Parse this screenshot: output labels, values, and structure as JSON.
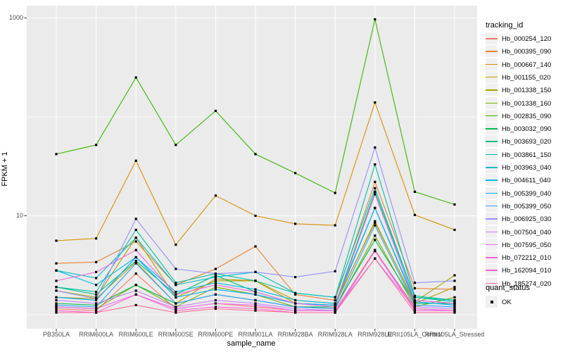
{
  "legend": {
    "tracking_title": "tracking_id",
    "quant_title": "quant_status",
    "quant_ok": "OK"
  },
  "chart_data": {
    "type": "line",
    "title": "",
    "xlabel": "sample_name",
    "ylabel": "FPKM + 1",
    "y_scale": "log10",
    "y_major_ticks": [
      10,
      1000
    ],
    "y_minor_gridlines": [
      1,
      100
    ],
    "ylim": [
      1,
      1100
    ],
    "grid": true,
    "legend_position": "right",
    "panel_background": "#ebebeb",
    "gridline_color": "#ffffff",
    "point_color": "#000000",
    "quant_status_label": "OK",
    "categories": [
      "PB350LA",
      "RRIM600LA",
      "RRIM600LE",
      "RRIM600SE",
      "RRIM600PE",
      "RRIM901LA",
      "RRIM928BA",
      "RRIM928LA",
      "RRIM928LE",
      "RRII105LA_Control",
      "RRII105LA_Stressed"
    ],
    "series": [
      {
        "name": "Hb_000254_120",
        "color": "#F8766D",
        "values": [
          1.15,
          1.1,
          2.6,
          1.15,
          1.3,
          1.2,
          1.1,
          1.1,
          4.5,
          1.15,
          1.1
        ]
      },
      {
        "name": "Hb_000395_090",
        "color": "#EA8331",
        "values": [
          3.3,
          3.4,
          5.5,
          2.0,
          2.9,
          4.9,
          1.6,
          1.4,
          22,
          1.85,
          1.8
        ]
      },
      {
        "name": "Hb_000667_140",
        "color": "#D89000",
        "values": [
          5.6,
          5.9,
          36,
          5.1,
          16,
          10,
          8.3,
          8.0,
          140,
          10.2,
          7.2
        ]
      },
      {
        "name": "Hb_001155_020",
        "color": "#C09B00",
        "values": [
          1.5,
          1.45,
          3.4,
          1.3,
          2.3,
          2.2,
          1.3,
          1.25,
          8.8,
          1.3,
          1.9
        ]
      },
      {
        "name": "Hb_001338_150",
        "color": "#A3A500",
        "values": [
          1.75,
          1.5,
          6.0,
          1.5,
          2.2,
          2.2,
          1.4,
          1.3,
          8.5,
          1.35,
          2.5
        ]
      },
      {
        "name": "Hb_001338_160",
        "color": "#7CAE00",
        "values": [
          1.2,
          1.15,
          2.0,
          1.2,
          1.9,
          1.6,
          1.2,
          1.15,
          6.3,
          1.2,
          1.5
        ]
      },
      {
        "name": "Hb_002835_090",
        "color": "#39B600",
        "values": [
          42,
          52,
          250,
          52,
          115,
          42,
          27,
          17,
          970,
          17.5,
          13
        ]
      },
      {
        "name": "Hb_003032_090",
        "color": "#00BB4E",
        "values": [
          1.3,
          1.25,
          2.0,
          1.3,
          1.6,
          1.4,
          1.2,
          1.2,
          5.7,
          1.3,
          1.3
        ]
      },
      {
        "name": "Hb_003693_020",
        "color": "#00BF7D",
        "values": [
          1.9,
          1.6,
          3.5,
          1.6,
          2.5,
          1.7,
          1.3,
          1.25,
          17.5,
          1.5,
          1.4
        ]
      },
      {
        "name": "Hb_003861_150",
        "color": "#00C1A3",
        "values": [
          1.9,
          1.7,
          7.2,
          2.1,
          2.6,
          2.2,
          1.65,
          1.5,
          33,
          1.55,
          1.4
        ]
      },
      {
        "name": "Hb_003963_040",
        "color": "#00BFC4",
        "values": [
          2.8,
          2.35,
          6.0,
          2.0,
          2.4,
          2.7,
          1.65,
          1.5,
          19,
          1.5,
          1.35
        ]
      },
      {
        "name": "Hb_004611_040",
        "color": "#00B8E7",
        "values": [
          2.8,
          2.0,
          3.8,
          1.7,
          2.1,
          1.8,
          1.4,
          1.3,
          12,
          1.4,
          1.3
        ]
      },
      {
        "name": "Hb_005399_040",
        "color": "#00ACFC",
        "values": [
          1.5,
          1.4,
          3.8,
          1.5,
          1.8,
          1.6,
          1.3,
          1.25,
          12,
          1.35,
          1.25
        ]
      },
      {
        "name": "Hb_005399_050",
        "color": "#35A2FF",
        "values": [
          1.25,
          1.2,
          3.3,
          1.3,
          1.6,
          1.4,
          1.2,
          1.15,
          8.0,
          1.25,
          1.2
        ]
      },
      {
        "name": "Hb_006925_030",
        "color": "#9590FF",
        "values": [
          1.75,
          1.45,
          9.3,
          2.9,
          2.6,
          2.7,
          2.4,
          2.75,
          49,
          2.1,
          2.2
        ]
      },
      {
        "name": "Hb_007504_040",
        "color": "#C77CFF",
        "values": [
          1.4,
          1.3,
          1.75,
          1.2,
          1.4,
          1.3,
          1.15,
          1.1,
          4.4,
          1.2,
          1.15
        ]
      },
      {
        "name": "Hb_007595_050",
        "color": "#E76BF3",
        "values": [
          1.2,
          1.15,
          1.6,
          1.15,
          1.3,
          1.25,
          1.1,
          1.1,
          3.7,
          1.15,
          1.1
        ]
      },
      {
        "name": "Hb_072212_010",
        "color": "#FA62DB",
        "values": [
          2.2,
          2.7,
          4.5,
          1.6,
          2.0,
          1.7,
          1.3,
          1.2,
          16.5,
          1.4,
          1.3
        ]
      },
      {
        "name": "Hb_162094_010",
        "color": "#FF61CC",
        "values": [
          1.1,
          1.05,
          1.6,
          1.1,
          1.2,
          1.15,
          1.05,
          1.05,
          4.4,
          1.1,
          1.1
        ]
      },
      {
        "name": "Hb_185274_020",
        "color": "#FF6A98",
        "values": [
          1.05,
          1.05,
          1.25,
          1.05,
          1.15,
          1.1,
          1.05,
          1.05,
          3.7,
          1.05,
          1.05
        ]
      }
    ]
  }
}
